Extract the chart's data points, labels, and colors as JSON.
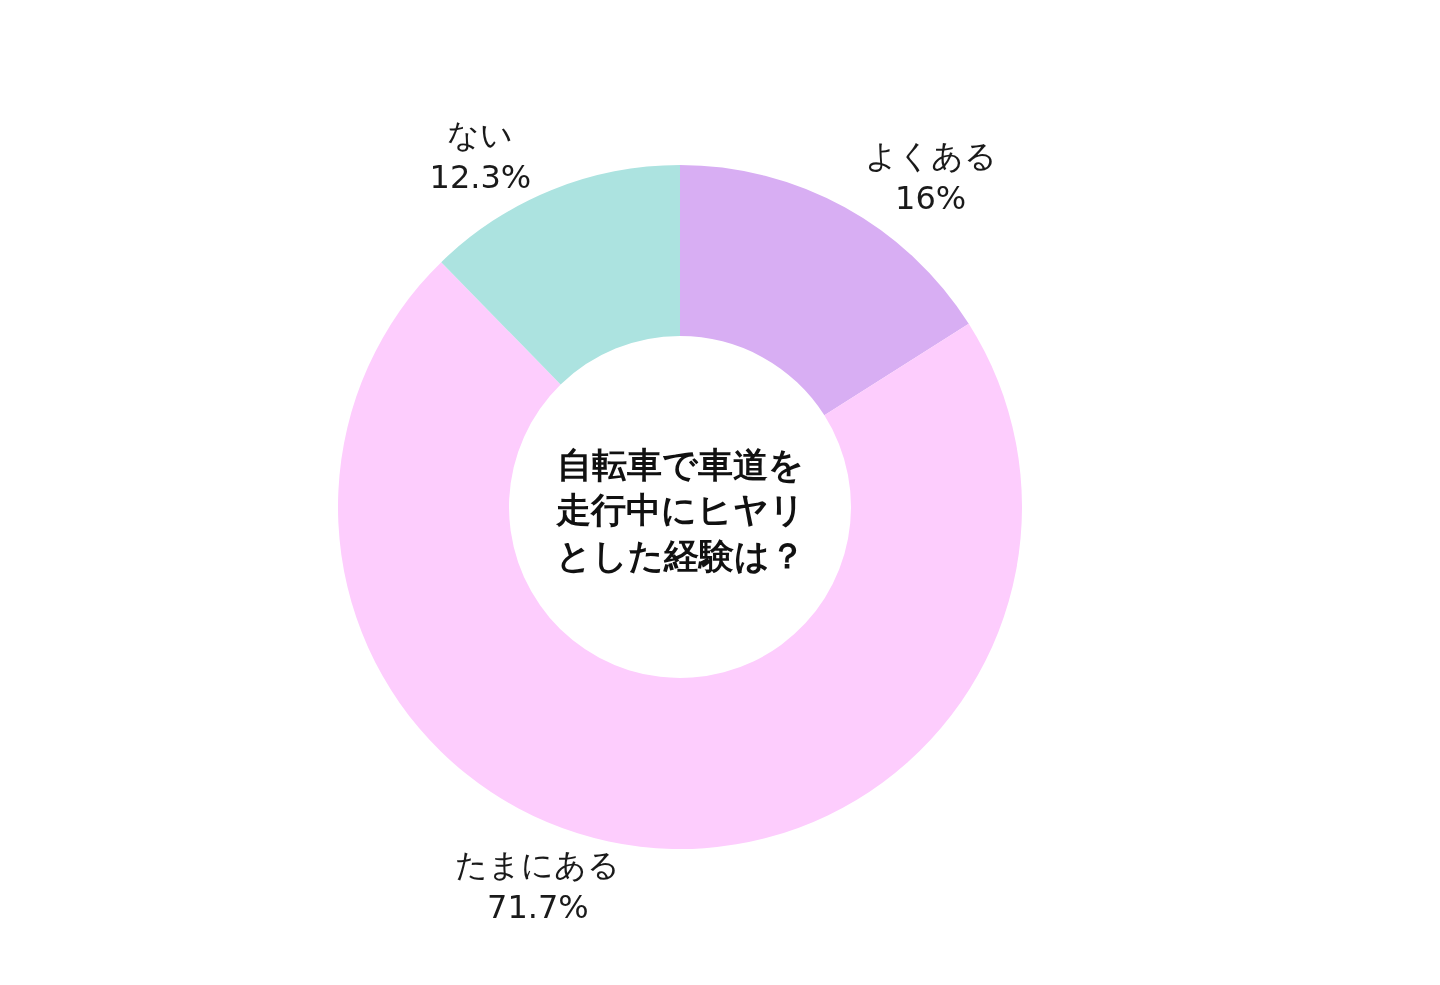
{
  "chart_data": {
    "type": "donut",
    "title": "自転車で車道を走行中にヒヤリとした経験は？",
    "categories": [
      "よくある",
      "たまにある",
      "ない"
    ],
    "values": [
      16,
      71.7,
      12.3
    ],
    "value_labels": [
      "16%",
      "71.7%",
      "12.3%"
    ],
    "colors": [
      "#d8aef3",
      "#fdcdfd",
      "#ace3e0"
    ],
    "legend": false
  }
}
